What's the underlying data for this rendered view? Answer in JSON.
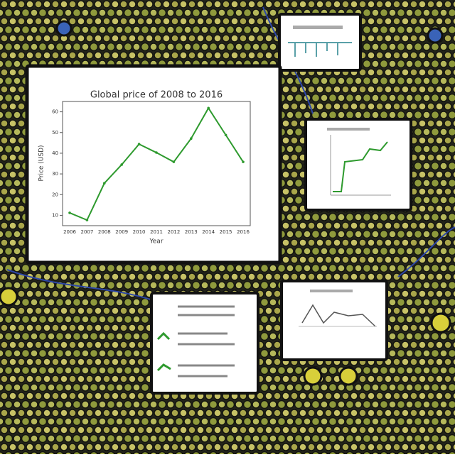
{
  "chart_data": {
    "type": "line",
    "title": "Global price of 2008 to 2016",
    "x_label": "Year",
    "y_label": "Price (USD)",
    "categories": [
      "2006",
      "2007",
      "2008",
      "2009",
      "2010",
      "2011",
      "2012",
      "2013",
      "2014",
      "2015",
      "2016"
    ],
    "values": [
      11.2,
      7.7,
      25.5,
      34.5,
      44.4,
      40.3,
      35.8,
      47.1,
      61.8,
      48.8,
      35.8
    ],
    "color": "#2e9a2e",
    "ylim": [
      5,
      65
    ],
    "yticks": [
      10,
      20,
      30,
      40,
      50,
      60
    ]
  }
}
